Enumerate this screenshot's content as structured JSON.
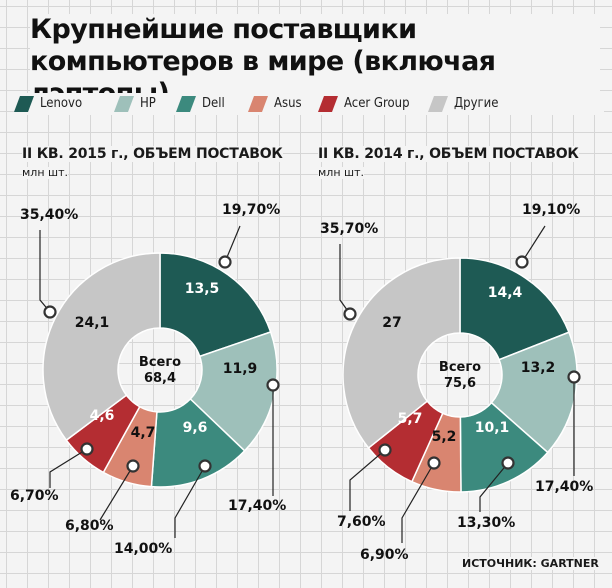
{
  "title": "Крупнейшие поставщики компьютеров в мире (включая лэптопы)",
  "legend": [
    {
      "name": "Lenovo",
      "color": "#1e5a54"
    },
    {
      "name": "HP",
      "color": "#9ec0ba"
    },
    {
      "name": "Dell",
      "color": "#3c8a7e"
    },
    {
      "name": "Asus",
      "color": "#d98570"
    },
    {
      "name": "Acer Group",
      "color": "#b42d32"
    },
    {
      "name": "Другие",
      "color": "#c6c6c6"
    }
  ],
  "source": "ИСТОЧНИК: GARTNER",
  "chart_data": [
    {
      "type": "pie",
      "subtitle": "II КВ. 2015 г., ОБЪЕМ ПОСТАВОК",
      "units": "млн шт.",
      "center_label": "Всего",
      "total": "68,4",
      "slices": [
        {
          "name": "Lenovo",
          "value": 13.5,
          "value_label": "13,5",
          "percent_label": "19,70%"
        },
        {
          "name": "HP",
          "value": 11.9,
          "value_label": "11,9",
          "percent_label": "17,40%"
        },
        {
          "name": "Dell",
          "value": 9.6,
          "value_label": "9,6",
          "percent_label": "14,00%"
        },
        {
          "name": "Asus",
          "value": 4.7,
          "value_label": "4,7",
          "percent_label": "6,80%"
        },
        {
          "name": "Acer Group",
          "value": 4.6,
          "value_label": "4,6",
          "percent_label": "6,70%"
        },
        {
          "name": "Другие",
          "value": 24.1,
          "value_label": "24,1",
          "percent_label": "35,40%"
        }
      ]
    },
    {
      "type": "pie",
      "subtitle": "II КВ. 2014 г., ОБЪЕМ ПОСТАВОК",
      "units": "млн шт.",
      "center_label": "Всего",
      "total": "75,6",
      "slices": [
        {
          "name": "Lenovo",
          "value": 14.4,
          "value_label": "14,4",
          "percent_label": "19,10%"
        },
        {
          "name": "HP",
          "value": 13.2,
          "value_label": "13,2",
          "percent_label": "17,40%"
        },
        {
          "name": "Dell",
          "value": 10.1,
          "value_label": "10,1",
          "percent_label": "13,30%"
        },
        {
          "name": "Asus",
          "value": 5.2,
          "value_label": "5,2",
          "percent_label": "6,90%"
        },
        {
          "name": "Acer Group",
          "value": 5.7,
          "value_label": "5,7",
          "percent_label": "7,60%"
        },
        {
          "name": "Другие",
          "value": 27,
          "value_label": "27",
          "percent_label": "35,70%"
        }
      ]
    }
  ]
}
